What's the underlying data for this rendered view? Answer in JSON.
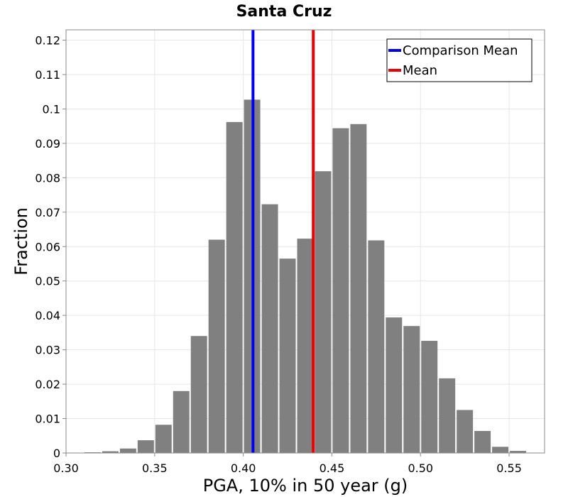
{
  "chart_data": {
    "type": "bar",
    "title": "Santa Cruz",
    "xlabel": "PGA, 10% in 50 year (g)",
    "ylabel": "Fraction",
    "xlim": [
      0.3,
      0.57
    ],
    "ylim": [
      0,
      0.123
    ],
    "grid": true,
    "bin_width": 0.01,
    "x_ticks": [
      {
        "value": 0.3,
        "label": "0.30"
      },
      {
        "value": 0.35,
        "label": "0.35"
      },
      {
        "value": 0.4,
        "label": "0.40"
      },
      {
        "value": 0.45,
        "label": "0.45"
      },
      {
        "value": 0.5,
        "label": "0.50"
      },
      {
        "value": 0.55,
        "label": "0.55"
      }
    ],
    "y_ticks": [
      {
        "value": 0,
        "label": "0"
      },
      {
        "value": 0.01,
        "label": "0.01"
      },
      {
        "value": 0.02,
        "label": "0.02"
      },
      {
        "value": 0.03,
        "label": "0.03"
      },
      {
        "value": 0.04,
        "label": "0.04"
      },
      {
        "value": 0.05,
        "label": "0.05"
      },
      {
        "value": 0.06,
        "label": "0.06"
      },
      {
        "value": 0.07,
        "label": "0.07"
      },
      {
        "value": 0.08,
        "label": "0.08"
      },
      {
        "value": 0.09,
        "label": "0.09"
      },
      {
        "value": 0.1,
        "label": "0.1"
      },
      {
        "value": 0.11,
        "label": "0.11"
      },
      {
        "value": 0.12,
        "label": "0.12"
      }
    ],
    "bins": [
      {
        "center": 0.315,
        "value": 0.0002
      },
      {
        "center": 0.325,
        "value": 0.0005
      },
      {
        "center": 0.335,
        "value": 0.0013
      },
      {
        "center": 0.345,
        "value": 0.0037
      },
      {
        "center": 0.355,
        "value": 0.0082
      },
      {
        "center": 0.365,
        "value": 0.018
      },
      {
        "center": 0.375,
        "value": 0.034
      },
      {
        "center": 0.385,
        "value": 0.062
      },
      {
        "center": 0.395,
        "value": 0.0962
      },
      {
        "center": 0.405,
        "value": 0.1027
      },
      {
        "center": 0.415,
        "value": 0.0723
      },
      {
        "center": 0.425,
        "value": 0.0565
      },
      {
        "center": 0.435,
        "value": 0.0623
      },
      {
        "center": 0.445,
        "value": 0.0819
      },
      {
        "center": 0.455,
        "value": 0.0944
      },
      {
        "center": 0.465,
        "value": 0.0956
      },
      {
        "center": 0.475,
        "value": 0.0618
      },
      {
        "center": 0.485,
        "value": 0.0394
      },
      {
        "center": 0.495,
        "value": 0.0369
      },
      {
        "center": 0.505,
        "value": 0.0326
      },
      {
        "center": 0.515,
        "value": 0.0217
      },
      {
        "center": 0.525,
        "value": 0.0125
      },
      {
        "center": 0.535,
        "value": 0.0064
      },
      {
        "center": 0.545,
        "value": 0.0018
      },
      {
        "center": 0.555,
        "value": 0.0006
      }
    ],
    "bar_color": "#808080",
    "vlines": [
      {
        "name": "Comparison Mean",
        "x": 0.4055,
        "color": "#0000ee"
      },
      {
        "name": "Mean",
        "x": 0.4395,
        "color": "#ee0000"
      }
    ],
    "legend": {
      "placement": "top-right",
      "entries": [
        {
          "label": "Comparison Mean",
          "color": "#0000ee"
        },
        {
          "label": "Mean",
          "color": "#ee0000"
        }
      ]
    }
  }
}
